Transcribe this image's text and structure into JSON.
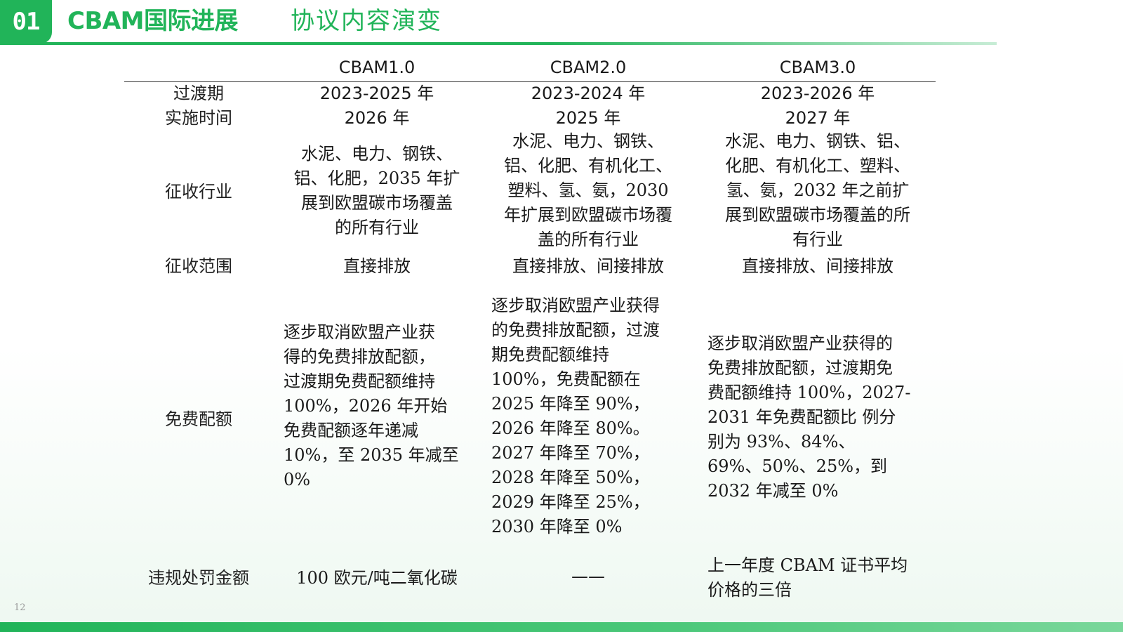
{
  "header": {
    "badge": "01",
    "title": "CBAM国际进展",
    "subtitle": "协议内容演变"
  },
  "table": {
    "columns": [
      "CBAM1.0",
      "CBAM2.0",
      "CBAM3.0"
    ],
    "rows": {
      "transition": {
        "label": [
          "过渡期",
          "实施时间"
        ],
        "cbam1": [
          "2023-2025 年",
          "2026 年"
        ],
        "cbam2": [
          "2023-2024 年",
          "2025 年"
        ],
        "cbam3": [
          "2023-2026  年",
          "2027 年"
        ]
      },
      "industries": {
        "label": "征收行业",
        "cbam1": [
          "水泥、电力、钢铁、",
          "铝、化肥，2035 年扩",
          "展到欧盟碳市场覆盖",
          "的所有行业"
        ],
        "cbam2": [
          "水泥、电力、钢铁、",
          "铝、化肥、有机化工、",
          "塑料、氢、氨，2030",
          "年扩展到欧盟碳市场覆",
          "盖的所有行业"
        ],
        "cbam3": [
          "水泥、电力、钢铁、铝、",
          "化肥、有机化工、塑料、",
          "氢、氨，2032 年之前扩",
          "展到欧盟碳市场覆盖的所",
          "有行业"
        ]
      },
      "scope": {
        "label": "征收范围",
        "cbam1": "直接排放",
        "cbam2": "直接排放、间接排放",
        "cbam3": "直接排放、间接排放"
      },
      "free_allowance": {
        "label": "免费配额",
        "cbam1": [
          "逐步取消欧盟产业获",
          "得的免费排放配额，",
          "过渡期免费配额维持",
          "100%，2026 年开始",
          "免费配额逐年递减",
          "10%，至 2035 年减至",
          "0%"
        ],
        "cbam2": [
          "逐步取消欧盟产业获得",
          "的免费排放配额，过渡",
          "期免费配额维持",
          "100%，免费配额在",
          "2025 年降至 90%，",
          "2026 年降至  80%。",
          "2027 年降至 70%，",
          "2028 年降至 50%，",
          "2029 年降至 25%，",
          "2030 年降至 0%"
        ],
        "cbam3": [
          "逐步取消欧盟产业获得的",
          "免费排放配额，过渡期免",
          "费配额维持 100%，2027-",
          "2031 年免费配额比  例分",
          "别为 93%、84%、",
          "69%、50%、25%，到",
          "2032 年减至 0%"
        ]
      },
      "penalty": {
        "label": "违规处罚金额",
        "cbam1": "100 欧元/吨二氧化碳",
        "cbam2": "——",
        "cbam3": [
          "上一年度 CBAM 证书平均",
          "价格的三倍"
        ]
      }
    }
  },
  "page_number": "12",
  "colors": {
    "accent": "#21b459"
  }
}
